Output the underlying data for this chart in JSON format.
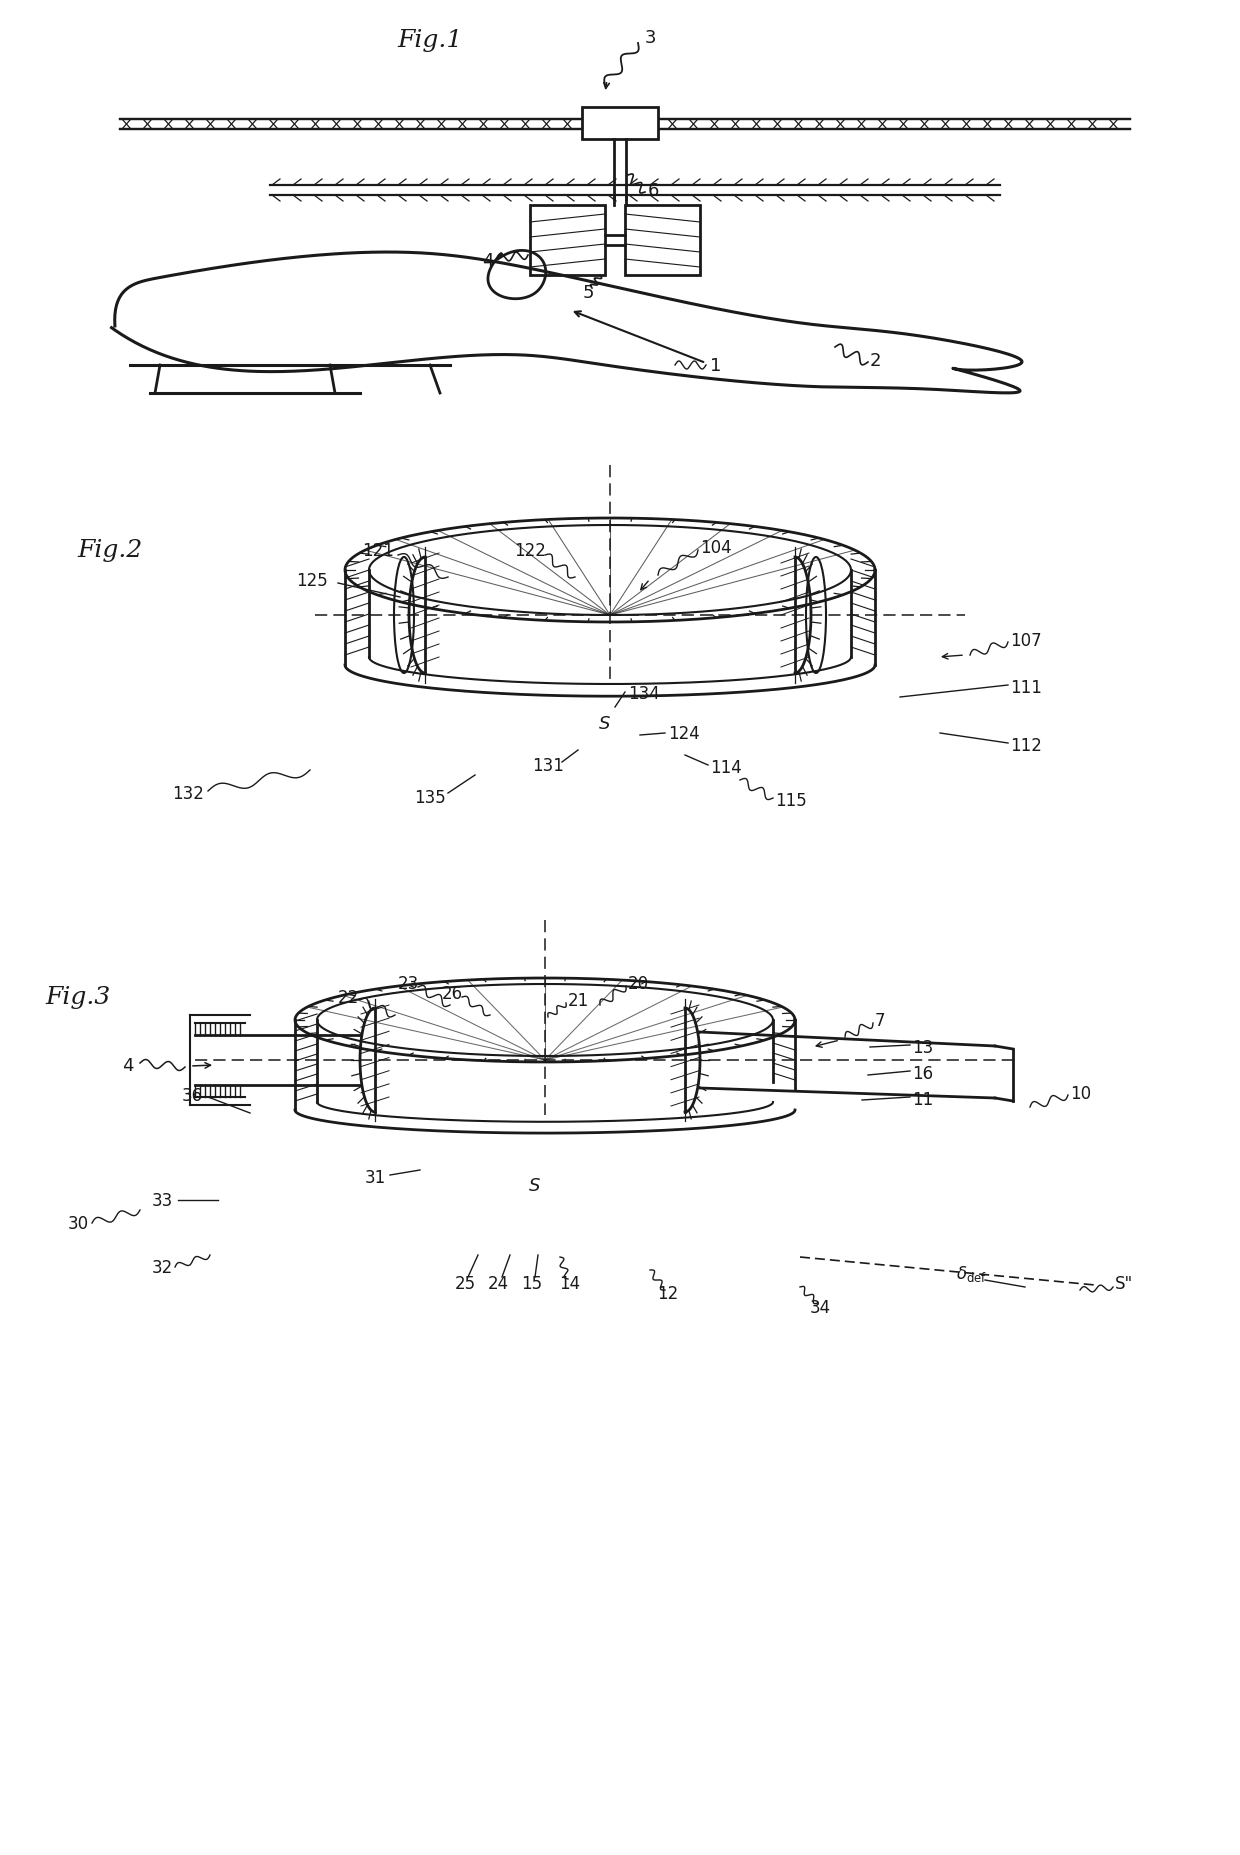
{
  "fig_width": 12.4,
  "fig_height": 18.56,
  "bg_color": "#ffffff",
  "line_color": "#1a1a1a",
  "fig1_label": "Fig.1",
  "fig2_label": "Fig.2",
  "fig3_label": "Fig.3"
}
